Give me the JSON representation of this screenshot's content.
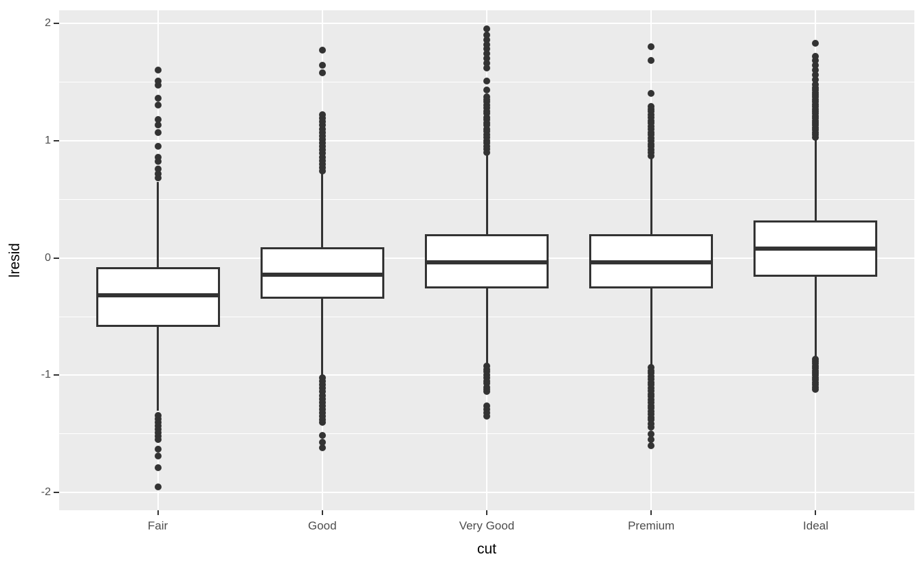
{
  "chart_data": {
    "type": "boxplot",
    "title": "",
    "xlabel": "cut",
    "ylabel": "lresid",
    "categories": [
      "Fair",
      "Good",
      "Very Good",
      "Premium",
      "Ideal"
    ],
    "y_axis": {
      "ticks": [
        -2,
        -1,
        0,
        1,
        2
      ],
      "tick_labels": [
        "-2",
        "-1",
        "0",
        "1",
        "2"
      ],
      "minor_ticks": [
        -1.5,
        -0.5,
        0.5,
        1.5
      ],
      "domain": [
        -2.15,
        2.11
      ],
      "grid": true
    },
    "legend": "none",
    "style": {
      "panel_bg": "#EBEBEB",
      "grid_color": "#FFFFFF",
      "stroke": "#333333",
      "box_fill": "#FFFFFF",
      "tick_label_color": "#4D4D4D",
      "title_color": "#000000"
    },
    "series": [
      {
        "category": "Fair",
        "q1": -0.59,
        "median": -0.32,
        "q3": -0.08,
        "whisker_low": -1.3,
        "whisker_high": 0.65,
        "outliers_high": [
          0.68,
          0.72,
          0.76,
          0.82,
          0.86,
          0.95,
          1.07,
          1.13,
          1.18,
          1.3,
          1.36,
          1.47,
          1.51,
          1.6
        ],
        "outliers_low": [
          -1.34,
          -1.37,
          -1.4,
          -1.43,
          -1.46,
          -1.49,
          -1.52,
          -1.55,
          -1.63,
          -1.69,
          -1.79,
          -1.95
        ]
      },
      {
        "category": "Good",
        "q1": -0.35,
        "median": -0.14,
        "q3": 0.09,
        "whisker_low": -1.0,
        "whisker_high": 0.73,
        "outliers_high": [
          0.74,
          0.77,
          0.8,
          0.83,
          0.86,
          0.89,
          0.92,
          0.95,
          0.98,
          1.01,
          1.04,
          1.07,
          1.1,
          1.13,
          1.16,
          1.19,
          1.22,
          1.58,
          1.64,
          1.77
        ],
        "outliers_low": [
          -1.02,
          -1.05,
          -1.08,
          -1.11,
          -1.14,
          -1.17,
          -1.2,
          -1.23,
          -1.26,
          -1.29,
          -1.32,
          -1.35,
          -1.38,
          -1.4,
          -1.51,
          -1.57,
          -1.62
        ]
      },
      {
        "category": "Very Good",
        "q1": -0.26,
        "median": -0.04,
        "q3": 0.2,
        "whisker_low": -0.91,
        "whisker_high": 0.89,
        "outliers_high": [
          0.9,
          0.93,
          0.95,
          0.98,
          1.0,
          1.03,
          1.05,
          1.08,
          1.1,
          1.13,
          1.15,
          1.18,
          1.2,
          1.23,
          1.25,
          1.28,
          1.3,
          1.33,
          1.35,
          1.37,
          1.43,
          1.51,
          1.62,
          1.66,
          1.7,
          1.74,
          1.78,
          1.82,
          1.86,
          1.9,
          1.95
        ],
        "outliers_low": [
          -0.92,
          -0.95,
          -0.97,
          -1.0,
          -1.02,
          -1.05,
          -1.07,
          -1.1,
          -1.12,
          -1.14,
          -1.26,
          -1.29,
          -1.32,
          -1.35
        ]
      },
      {
        "category": "Premium",
        "q1": -0.26,
        "median": -0.04,
        "q3": 0.2,
        "whisker_low": -0.92,
        "whisker_high": 0.86,
        "outliers_high": [
          0.87,
          0.9,
          0.92,
          0.95,
          0.97,
          1.0,
          1.02,
          1.05,
          1.07,
          1.1,
          1.12,
          1.15,
          1.17,
          1.2,
          1.22,
          1.25,
          1.27,
          1.29,
          1.4,
          1.68,
          1.8
        ],
        "outliers_low": [
          -0.93,
          -0.96,
          -0.98,
          -1.01,
          -1.03,
          -1.06,
          -1.08,
          -1.11,
          -1.13,
          -1.16,
          -1.18,
          -1.21,
          -1.23,
          -1.26,
          -1.28,
          -1.31,
          -1.33,
          -1.36,
          -1.38,
          -1.41,
          -1.44,
          -1.5,
          -1.55,
          -1.6
        ]
      },
      {
        "category": "Ideal",
        "q1": -0.16,
        "median": 0.08,
        "q3": 0.32,
        "whisker_low": -0.85,
        "whisker_high": 1.02,
        "outliers_high": [
          1.03,
          1.05,
          1.07,
          1.09,
          1.11,
          1.13,
          1.15,
          1.17,
          1.19,
          1.21,
          1.23,
          1.25,
          1.27,
          1.29,
          1.31,
          1.33,
          1.35,
          1.37,
          1.39,
          1.41,
          1.43,
          1.45,
          1.48,
          1.52,
          1.56,
          1.6,
          1.64,
          1.68,
          1.72,
          1.83
        ],
        "outliers_low": [
          -0.86,
          -0.88,
          -0.9,
          -0.92,
          -0.94,
          -0.96,
          -0.98,
          -1.0,
          -1.02,
          -1.04,
          -1.06,
          -1.08,
          -1.1,
          -1.12
        ]
      }
    ]
  }
}
